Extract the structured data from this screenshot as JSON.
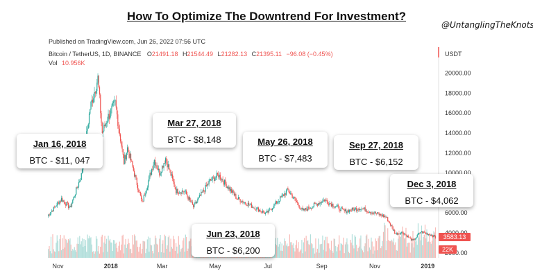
{
  "title": "How To Optimize The Downtrend For Investment?",
  "handle": "@UntanglingTheKnots",
  "chart_data": {
    "type": "candlestick",
    "published": "Published on TradingView.com, Jun 26, 2022 07:56 UTC",
    "symbol": "Bitcoin / TetherUS, 1D, BINANCE",
    "ohlc": {
      "O": "21491.18",
      "H": "21544.49",
      "L": "21282.13",
      "C": "21395.11",
      "change": "−96.08 (−0.45%)"
    },
    "vol_label": "Vol",
    "vol_value": "10.956K",
    "currency": "USDT",
    "ylim": [
      1500,
      21500
    ],
    "yticks": [
      "2000.00",
      "4000.00",
      "6000.00",
      "8000.00",
      "10000.00",
      "12000.00",
      "14000.00",
      "16000.00",
      "18000.00",
      "20000.00"
    ],
    "xticks": [
      "Nov",
      "2018",
      "Mar",
      "May",
      "Jul",
      "Sep",
      "Nov",
      "2019"
    ],
    "last_price": "3583.13",
    "last_volume": "22K",
    "series_anchors": [
      {
        "date": "2017-10-20",
        "price": 5700
      },
      {
        "date": "2017-11-05",
        "price": 7400
      },
      {
        "date": "2017-11-15",
        "price": 6500
      },
      {
        "date": "2017-11-28",
        "price": 9800
      },
      {
        "date": "2017-12-08",
        "price": 16500
      },
      {
        "date": "2017-12-17",
        "price": 19500
      },
      {
        "date": "2017-12-22",
        "price": 14000
      },
      {
        "date": "2017-12-28",
        "price": 15500
      },
      {
        "date": "2018-01-06",
        "price": 17000
      },
      {
        "date": "2018-01-16",
        "price": 11047
      },
      {
        "date": "2018-01-20",
        "price": 12500
      },
      {
        "date": "2018-02-06",
        "price": 7000
      },
      {
        "date": "2018-02-20",
        "price": 11300
      },
      {
        "date": "2018-02-26",
        "price": 10000
      },
      {
        "date": "2018-03-05",
        "price": 11500
      },
      {
        "date": "2018-03-17",
        "price": 8200
      },
      {
        "date": "2018-03-27",
        "price": 8148
      },
      {
        "date": "2018-04-06",
        "price": 6600
      },
      {
        "date": "2018-04-25",
        "price": 9200
      },
      {
        "date": "2018-05-05",
        "price": 9800
      },
      {
        "date": "2018-05-26",
        "price": 7483
      },
      {
        "date": "2018-06-23",
        "price": 6200
      },
      {
        "date": "2018-06-29",
        "price": 5900
      },
      {
        "date": "2018-07-24",
        "price": 8300
      },
      {
        "date": "2018-08-10",
        "price": 6200
      },
      {
        "date": "2018-09-04",
        "price": 7300
      },
      {
        "date": "2018-09-27",
        "price": 6152
      },
      {
        "date": "2018-10-15",
        "price": 6500
      },
      {
        "date": "2018-11-14",
        "price": 5600
      },
      {
        "date": "2018-11-25",
        "price": 3900
      },
      {
        "date": "2018-12-03",
        "price": 4062
      },
      {
        "date": "2018-12-15",
        "price": 3200
      },
      {
        "date": "2018-12-24",
        "price": 4100
      },
      {
        "date": "2019-01-05",
        "price": 3800
      },
      {
        "date": "2019-01-10",
        "price": 3583
      }
    ],
    "annotations": [
      {
        "date": "Jan 16, 2018",
        "price": "BTC - $11, 047"
      },
      {
        "date": "Mar 27, 2018",
        "price": "BTC - $8,148"
      },
      {
        "date": "May 26, 2018",
        "price": "BTC - $7,483"
      },
      {
        "date": "Sep 27, 2018",
        "price": "BTC - $6,152"
      },
      {
        "date": "Dec 3, 2018",
        "price": "BTC - $4,062"
      },
      {
        "date": "Jun 23, 2018",
        "price": "BTC - $6,200"
      }
    ],
    "colors": {
      "up": "#26a69a",
      "down": "#ef5350",
      "vol_up": "#b2dfdb",
      "vol_down": "#f8bbb7",
      "badge": "#ef5350"
    }
  }
}
